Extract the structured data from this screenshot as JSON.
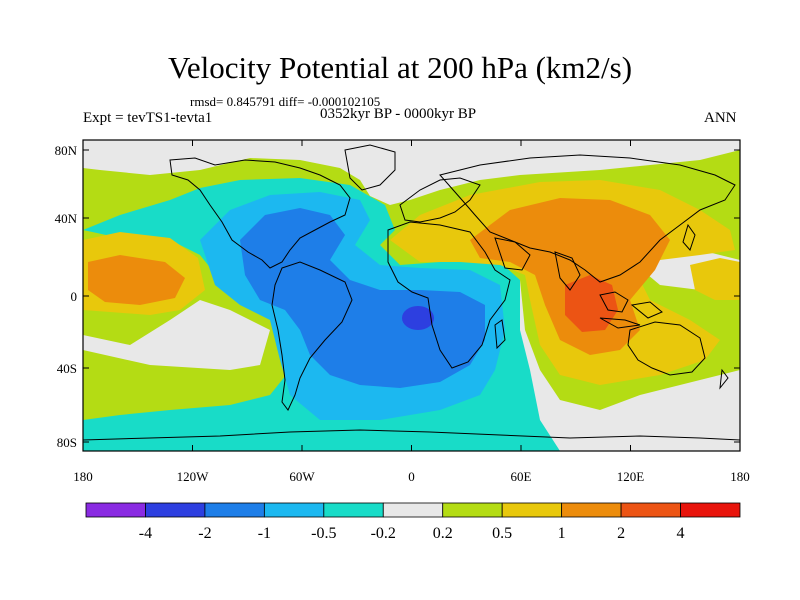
{
  "title": "Velocity Potential at 200 hPa (km2/s)",
  "stats": "rmsd= 0.845791  diff= -0.000102105",
  "experiment": "Expt = tevTS1-tevta1",
  "period": "0352kyr BP - 0000kyr BP",
  "season": "ANN",
  "lat_ticks": [
    "80N",
    "40N",
    "0",
    "40S",
    "80S"
  ],
  "lon_ticks": [
    "180",
    "120W",
    "60W",
    "0",
    "60E",
    "120E",
    "180"
  ],
  "colorbar": {
    "colors": [
      "#8a2be2",
      "#2d3fe0",
      "#1e7ee8",
      "#1cb8f0",
      "#18dcc8",
      "#e8e8e8",
      "#b4dc14",
      "#e8c80c",
      "#ec8c0c",
      "#ec5414",
      "#e8140c"
    ],
    "labels": [
      "-4",
      "-2",
      "-1",
      "-0.5",
      "-0.2",
      "0.2",
      "0.5",
      "1",
      "2",
      "4"
    ]
  },
  "field_colors": {
    "background": "#b4dc14",
    "neutral": "#e8e8e8",
    "neg_weak": "#18dcc8",
    "neg_mid": "#1cb8f0",
    "neg_strong": "#1e7ee8",
    "neg_max": "#2d3fe0",
    "pos_weak": "#e8c80c",
    "pos_mid": "#ec8c0c",
    "pos_strong": "#ec5414"
  }
}
